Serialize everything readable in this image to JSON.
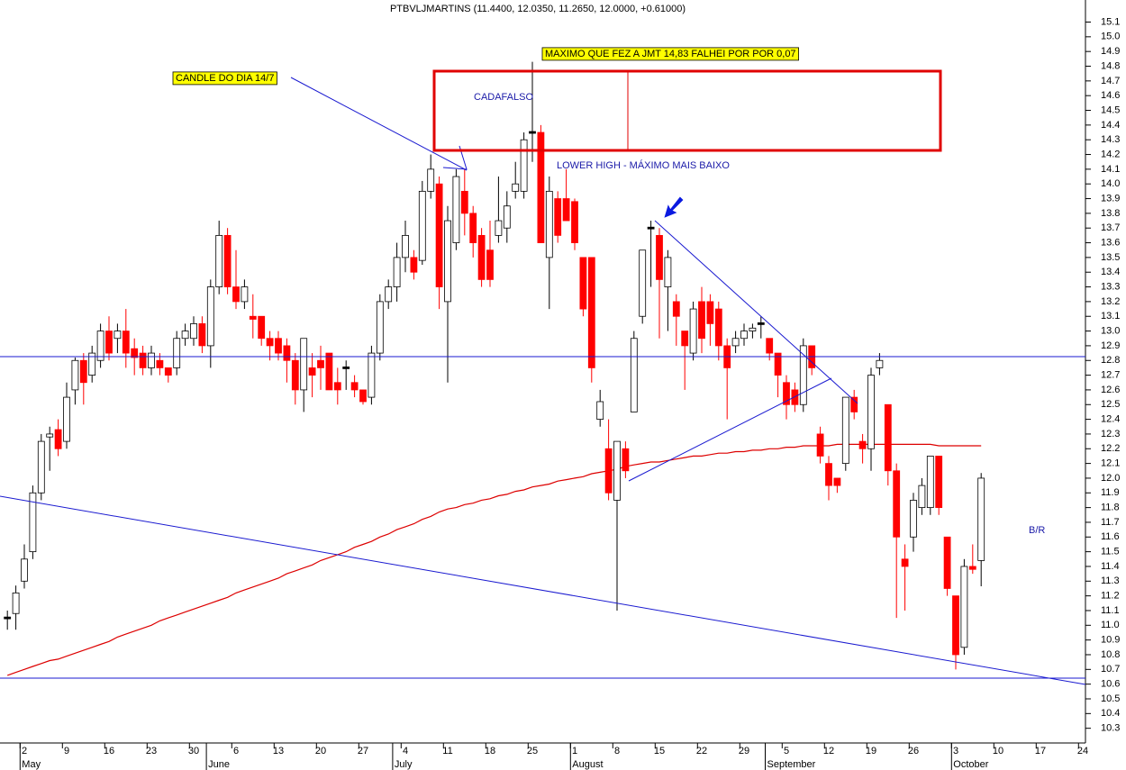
{
  "chart_data": {
    "type": "candlestick",
    "title": "PTBVLJMARTINS (11.4400, 12.0350, 11.2650, 12.0000, +0.61000)",
    "categories": [
      null,
      null,
      "2",
      null,
      null,
      null,
      null,
      "9",
      null,
      null,
      null,
      null,
      "16",
      null,
      null,
      null,
      null,
      "23",
      null,
      null,
      null,
      null,
      "30",
      null,
      null,
      null,
      null,
      "6",
      null,
      null,
      null,
      null,
      "13",
      null,
      null,
      null,
      null,
      "20",
      null,
      null,
      null,
      null,
      "27",
      null,
      null,
      null,
      null,
      "4",
      null,
      null,
      null,
      null,
      "11",
      null,
      null,
      null,
      null,
      "18",
      null,
      null,
      null,
      null,
      "25",
      null,
      null,
      null,
      null,
      "1",
      null,
      null,
      null,
      null,
      "8",
      null,
      null,
      null,
      null,
      "15",
      null,
      null,
      null,
      null,
      "22",
      null,
      null,
      null,
      null,
      "29",
      null,
      null,
      null,
      null,
      "5",
      null,
      null,
      null,
      null,
      "12",
      null,
      null,
      null,
      null,
      "19",
      null,
      null,
      null,
      null,
      "26",
      null,
      null,
      null,
      null,
      "3",
      null,
      null,
      null,
      null,
      "10",
      null,
      null,
      null,
      null,
      "17",
      null,
      null,
      null,
      null,
      "24"
    ],
    "months": [
      {
        "label": "May",
        "start": 2
      },
      {
        "label": "June",
        "start": 24
      },
      {
        "label": "July",
        "start": 46
      },
      {
        "label": "August",
        "start": 67
      },
      {
        "label": "September",
        "start": 90
      },
      {
        "label": "October",
        "start": 112
      }
    ],
    "open": [
      11.05,
      11.08,
      11.3,
      11.5,
      11.9,
      12.28,
      12.33,
      12.25,
      12.6,
      12.8,
      12.7,
      12.8,
      13.0,
      12.95,
      13.0,
      12.88,
      12.85,
      12.75,
      12.8,
      12.75,
      12.75,
      12.95,
      12.95,
      13.05,
      12.9,
      13.3,
      13.65,
      13.3,
      13.2,
      13.1,
      13.1,
      12.95,
      12.95,
      12.9,
      12.8,
      12.6,
      12.75,
      12.8,
      12.85,
      12.65,
      12.75,
      12.65,
      12.6,
      12.55,
      12.85,
      13.2,
      13.3,
      13.5,
      13.5,
      13.48,
      13.95,
      14.0,
      13.2,
      13.6,
      13.95,
      13.8,
      13.65,
      13.55,
      13.65,
      13.7,
      13.95,
      13.95,
      14.35,
      14.35,
      13.5,
      13.9,
      13.9,
      13.88,
      13.5,
      13.5,
      12.4,
      12.2,
      11.85,
      12.2,
      12.45,
      13.1,
      13.7,
      13.65,
      13.3,
      13.2,
      13.0,
      12.85,
      13.2,
      13.2,
      13.15,
      12.9,
      12.9,
      12.95,
      13.0,
      13.05,
      12.95,
      12.85,
      12.65,
      12.6,
      12.5,
      12.9,
      12.3,
      12.1,
      12.0,
      12.1,
      12.55,
      12.25,
      12.2,
      12.75,
      12.5,
      12.05,
      11.45,
      11.6,
      11.8,
      11.8,
      12.15,
      11.6,
      11.2,
      10.85,
      11.4,
      11.44,
      null,
      null,
      null,
      null,
      null,
      null,
      null,
      null,
      null,
      null,
      null,
      null
    ],
    "high": [
      11.1,
      11.27,
      11.55,
      11.95,
      12.3,
      12.35,
      12.4,
      12.65,
      12.82,
      12.85,
      12.9,
      13.05,
      13.1,
      13.05,
      13.15,
      12.95,
      12.9,
      12.9,
      12.85,
      12.75,
      13.0,
      13.05,
      13.1,
      13.1,
      13.35,
      13.75,
      13.7,
      13.55,
      13.35,
      13.25,
      13.1,
      13.0,
      13.0,
      12.95,
      12.85,
      12.95,
      12.85,
      12.9,
      12.85,
      12.75,
      12.8,
      12.7,
      12.6,
      12.9,
      13.25,
      13.35,
      13.6,
      13.75,
      13.55,
      14.02,
      14.2,
      14.05,
      13.85,
      14.1,
      14.1,
      13.85,
      13.7,
      13.75,
      14.05,
      13.95,
      14.15,
      14.35,
      14.83,
      14.4,
      14.05,
      13.95,
      14.1,
      13.9,
      13.5,
      13.5,
      12.6,
      12.4,
      12.25,
      12.25,
      13.0,
      13.55,
      13.75,
      13.7,
      13.55,
      13.25,
      13.0,
      13.2,
      13.3,
      13.25,
      13.2,
      12.95,
      13.0,
      13.05,
      13.05,
      13.1,
      12.95,
      12.85,
      12.7,
      12.65,
      12.95,
      12.9,
      12.35,
      12.15,
      12.0,
      12.55,
      12.6,
      12.3,
      12.75,
      12.85,
      12.5,
      12.1,
      11.55,
      11.9,
      12.0,
      12.15,
      12.15,
      11.6,
      11.2,
      11.45,
      11.55,
      12.035,
      null,
      null,
      null,
      null,
      null,
      null,
      null,
      null,
      null,
      null,
      null,
      null
    ],
    "low": [
      10.97,
      10.97,
      11.25,
      11.45,
      11.85,
      12.05,
      12.15,
      12.2,
      12.5,
      12.5,
      12.65,
      12.75,
      12.8,
      12.85,
      12.75,
      12.7,
      12.7,
      12.7,
      12.7,
      12.65,
      12.7,
      12.9,
      12.9,
      12.85,
      12.75,
      13.25,
      13.25,
      13.15,
      13.15,
      12.95,
      12.9,
      12.8,
      12.8,
      12.65,
      12.5,
      12.45,
      12.55,
      12.6,
      12.6,
      12.5,
      12.6,
      12.55,
      12.5,
      12.5,
      12.8,
      13.15,
      13.2,
      13.4,
      13.35,
      13.45,
      13.9,
      13.15,
      12.65,
      13.55,
      13.65,
      13.5,
      13.3,
      13.3,
      13.6,
      13.6,
      13.9,
      13.9,
      14.15,
      13.6,
      13.15,
      13.6,
      13.75,
      13.55,
      13.1,
      12.65,
      12.35,
      11.85,
      11.1,
      12.0,
      12.45,
      13.05,
      13.3,
      12.95,
      13.0,
      12.9,
      12.6,
      12.8,
      12.85,
      12.9,
      12.8,
      12.4,
      12.85,
      12.9,
      12.95,
      12.95,
      12.8,
      12.55,
      12.4,
      12.45,
      12.45,
      12.7,
      12.1,
      11.85,
      11.9,
      12.05,
      12.4,
      12.1,
      12.05,
      12.7,
      11.95,
      11.05,
      11.1,
      11.5,
      11.75,
      11.75,
      11.75,
      11.2,
      10.7,
      10.8,
      11.35,
      11.265,
      null,
      null,
      null,
      null,
      null,
      null,
      null,
      null,
      null,
      null,
      null,
      null
    ],
    "close": [
      11.05,
      11.22,
      11.45,
      11.9,
      12.25,
      12.3,
      12.2,
      12.55,
      12.8,
      12.65,
      12.85,
      13.0,
      12.85,
      13.0,
      12.85,
      12.82,
      12.75,
      12.85,
      12.75,
      12.7,
      12.95,
      13.0,
      13.05,
      12.9,
      13.3,
      13.65,
      13.3,
      13.2,
      13.3,
      13.08,
      12.95,
      12.9,
      12.85,
      12.8,
      12.6,
      12.95,
      12.7,
      12.75,
      12.6,
      12.6,
      12.75,
      12.6,
      12.52,
      12.85,
      13.2,
      13.3,
      13.5,
      13.65,
      13.4,
      13.95,
      14.1,
      13.3,
      13.75,
      14.05,
      13.8,
      13.6,
      13.35,
      13.35,
      13.75,
      13.85,
      14.0,
      14.3,
      14.35,
      13.6,
      13.95,
      13.65,
      13.75,
      13.6,
      13.15,
      12.75,
      12.52,
      11.9,
      12.25,
      12.05,
      12.95,
      13.55,
      13.7,
      13.35,
      13.5,
      13.1,
      12.9,
      13.15,
      12.95,
      13.05,
      12.9,
      12.75,
      12.95,
      13.0,
      13.02,
      13.05,
      12.85,
      12.7,
      12.5,
      12.5,
      12.9,
      12.75,
      12.15,
      11.95,
      11.95,
      12.55,
      12.45,
      12.2,
      12.7,
      12.8,
      12.05,
      11.6,
      11.4,
      11.85,
      11.95,
      12.15,
      11.8,
      11.25,
      10.8,
      11.4,
      11.38,
      12.0,
      null,
      null,
      null,
      null,
      null,
      null,
      null,
      null,
      null,
      null,
      null,
      null
    ],
    "up_color": "#ffffff",
    "down_color": "#ff0000",
    "flat_color": "#000000",
    "moving_average": {
      "color": "#dd0000",
      "values": [
        10.66,
        10.68,
        10.7,
        10.72,
        10.74,
        10.76,
        10.77,
        10.79,
        10.81,
        10.83,
        10.85,
        10.87,
        10.89,
        10.92,
        10.94,
        10.96,
        10.98,
        11.0,
        11.03,
        11.05,
        11.07,
        11.09,
        11.11,
        11.13,
        11.15,
        11.17,
        11.19,
        11.22,
        11.24,
        11.26,
        11.28,
        11.3,
        11.32,
        11.35,
        11.37,
        11.39,
        11.41,
        11.44,
        11.46,
        11.48,
        11.5,
        11.53,
        11.55,
        11.57,
        11.6,
        11.62,
        11.65,
        11.67,
        11.69,
        11.72,
        11.74,
        11.77,
        11.79,
        11.8,
        11.82,
        11.83,
        11.85,
        11.86,
        11.88,
        11.89,
        11.91,
        11.92,
        11.94,
        11.95,
        11.96,
        11.98,
        11.99,
        12.0,
        12.01,
        12.03,
        12.04,
        12.05,
        12.06,
        12.08,
        12.09,
        12.1,
        12.11,
        12.11,
        12.12,
        12.13,
        12.14,
        12.15,
        12.15,
        12.16,
        12.17,
        12.17,
        12.18,
        12.18,
        12.19,
        12.19,
        12.2,
        12.2,
        12.21,
        12.21,
        12.22,
        12.22,
        12.22,
        12.22,
        12.23,
        12.23,
        12.23,
        12.23,
        12.23,
        12.23,
        12.23,
        12.23,
        12.23,
        12.23,
        12.23,
        12.23,
        12.22,
        12.22,
        12.22,
        12.22,
        12.22,
        12.22,
        null,
        null,
        null,
        null,
        null,
        null,
        null,
        null,
        null,
        null,
        null,
        null
      ]
    },
    "ylim": [
      10.2,
      15.25
    ],
    "yticks": [
      10.3,
      10.4,
      10.5,
      10.6,
      10.7,
      10.8,
      10.9,
      {
        "value": 11,
        "label": "11.0"
      },
      11.1,
      11.2,
      11.3,
      11.4,
      11.5,
      11.6,
      11.7,
      11.8,
      11.9,
      {
        "value": 12,
        "label": "12.0"
      },
      12.1,
      12.2,
      12.3,
      12.4,
      12.5,
      12.6,
      12.7,
      12.8,
      12.9,
      {
        "value": 13,
        "label": "13.0"
      },
      13.1,
      13.2,
      13.3,
      13.4,
      13.5,
      13.6,
      13.7,
      13.8,
      13.9,
      {
        "value": 14,
        "label": "14.0"
      },
      14.1,
      14.2,
      14.3,
      14.4,
      14.5,
      14.6,
      14.7,
      14.8,
      14.9,
      {
        "value": 15,
        "label": "15.0"
      },
      15.1
    ],
    "annotations": [
      "CANDLE DO DIA 14/7",
      "MAXIMO QUE FEZ A  JMT 14,83 FALHEI POR POR 0,07",
      "CADAFALSO",
      "LOWER HIGH - MÁXIMO MAIS BAIXO",
      "B/R"
    ]
  }
}
